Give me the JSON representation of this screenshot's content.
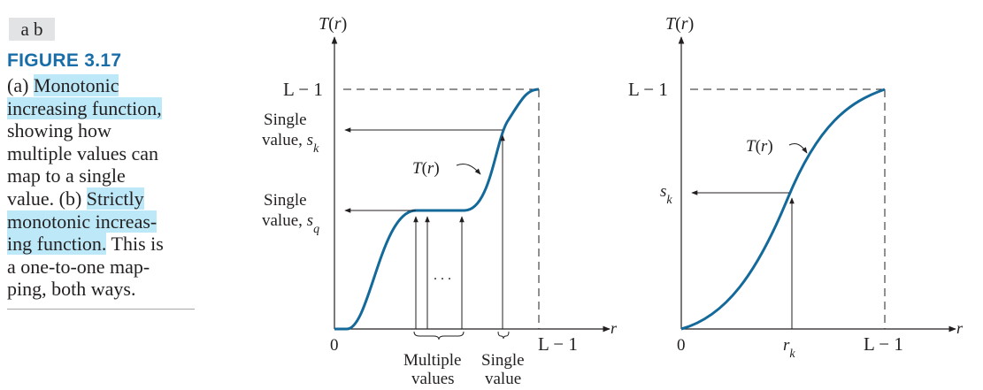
{
  "caption": {
    "panel_tag": "a b",
    "figure_label": "FIGURE 3.17",
    "lines": [
      [
        {
          "t": "(a) ",
          "h": false
        },
        {
          "t": "Monotonic",
          "h": true
        }
      ],
      [
        {
          "t": "increasing function,",
          "h": true
        }
      ],
      [
        {
          "t": "showing how",
          "h": false
        }
      ],
      [
        {
          "t": "multiple values can",
          "h": false
        }
      ],
      [
        {
          "t": "map to a single",
          "h": false
        }
      ],
      [
        {
          "t": "value. (b) ",
          "h": false
        },
        {
          "t": "Strictly",
          "h": true
        }
      ],
      [
        {
          "t": "monotonic increas-",
          "h": true
        }
      ],
      [
        {
          "t": "ing function.",
          "h": true
        },
        {
          "t": " This is",
          "h": false
        }
      ],
      [
        {
          "t": "a one-to-one map-",
          "h": false
        }
      ],
      [
        {
          "t": "ping, both ways.",
          "h": false
        }
      ]
    ],
    "highlight_color": "#bde8f8"
  },
  "panel_a": {
    "y_axis_label": "T(r)",
    "x_axis_label": "r",
    "y_top_label": "L − 1",
    "x_end_label": "L − 1",
    "origin_label": "0",
    "curve_label": "T(r)",
    "single_value_k": "Single",
    "value_k": "value, s",
    "sub_k": "k",
    "single_value_q": "Single",
    "value_q": "value, s",
    "sub_q": "q",
    "ellipsis": ". . .",
    "multiple_label_1": "Multiple",
    "multiple_label_2": "values",
    "single_label_1": "Single",
    "single_label_2": "value"
  },
  "panel_b": {
    "y_axis_label": "T(r)",
    "x_axis_label": "r",
    "y_top_label": "L − 1",
    "x_end_label": "L − 1",
    "origin_label": "0",
    "curve_label": "T(r)",
    "sk_label": "s",
    "sk_sub": "k",
    "rk_label": "r",
    "rk_sub": "k"
  },
  "colors": {
    "curve": "#13699a",
    "text": "#231f20",
    "caption_title": "#1a6ea8"
  }
}
